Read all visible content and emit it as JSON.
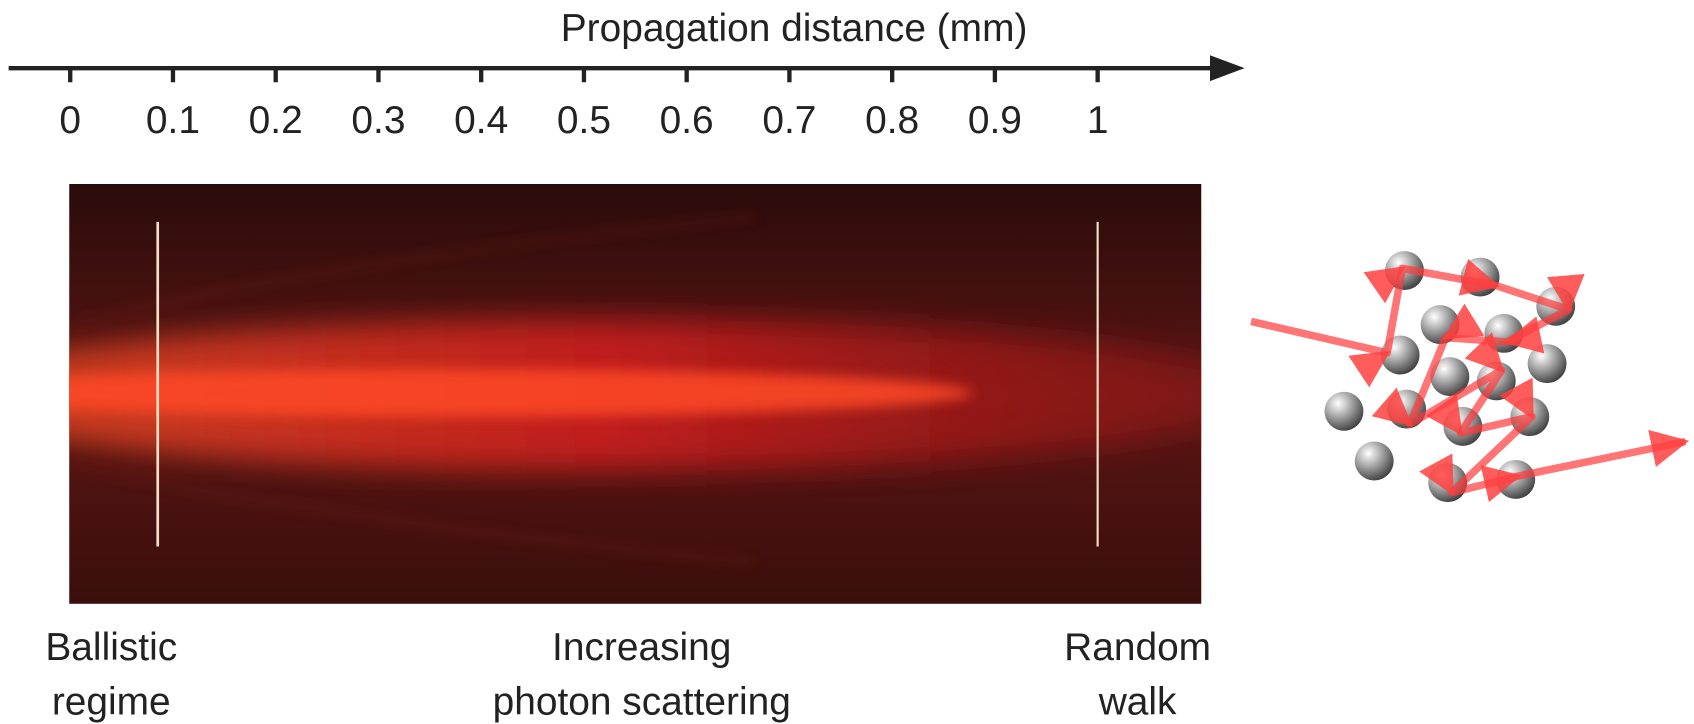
{
  "axis": {
    "title": "Propagation distance (mm)",
    "ticks": [
      0,
      0.1,
      0.2,
      0.3,
      0.4,
      0.5,
      0.6,
      0.7,
      0.8,
      0.9,
      1
    ]
  },
  "labels": [
    [
      "Ballistic",
      "regime"
    ],
    [
      "Increasing",
      "photon scattering"
    ],
    [
      "Random",
      "walk"
    ]
  ]
}
